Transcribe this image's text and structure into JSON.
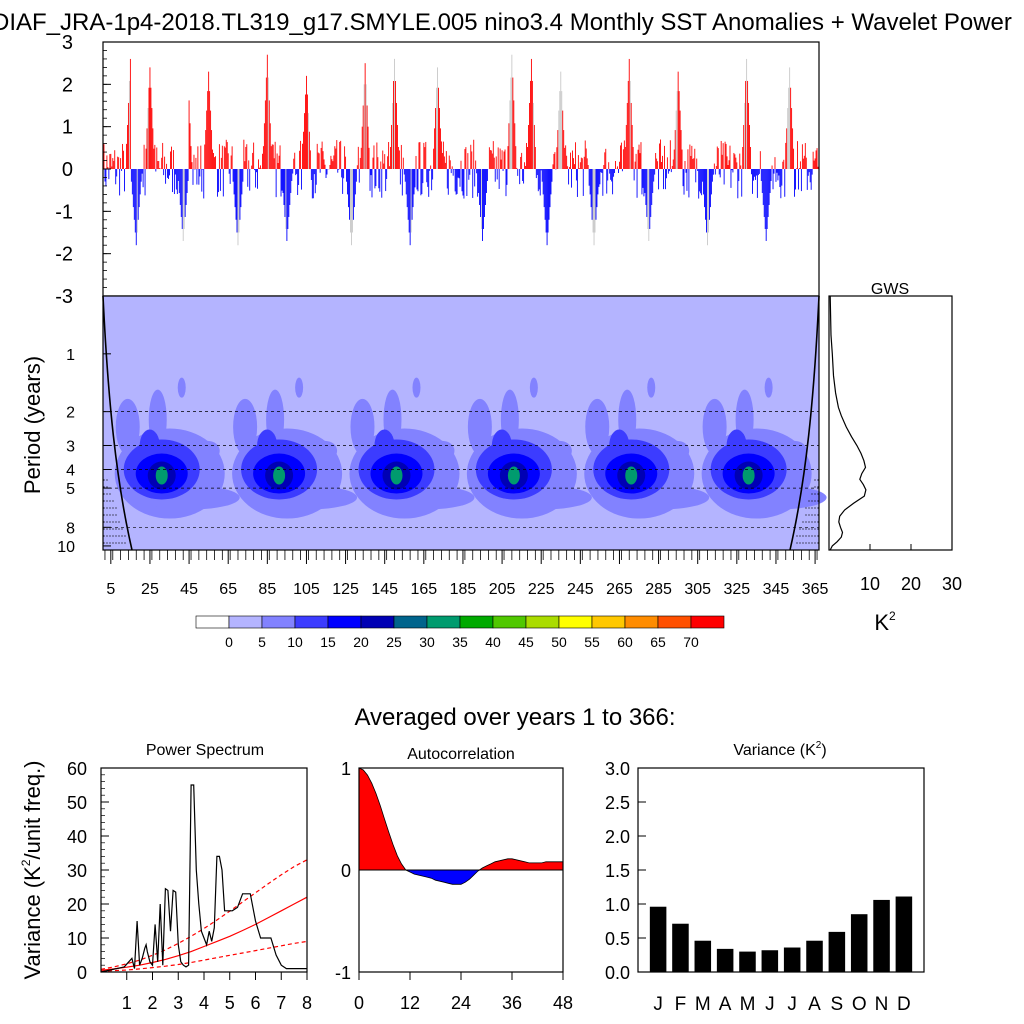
{
  "title": "DIAF_JRA-1p4-2018.TL319_g17.SMYLE.005 nino3.4 Monthly SST Anomalies + Wavelet Power",
  "subtitle": "Averaged over years 1 to 366:",
  "colors": {
    "pos": "#ff0000",
    "neg": "#0000ff",
    "clipped": "#c8c8c8",
    "fit": "#ff0000",
    "bar": "#000000"
  },
  "chart_data": [
    {
      "id": "anomaly_ts",
      "type": "bar",
      "ylim": [
        -3,
        3
      ],
      "yticks": [
        "3",
        "2",
        "1",
        "0",
        "-1",
        "-2",
        "-3"
      ],
      "yticks_values": [
        3,
        2,
        1,
        0,
        -1,
        -2,
        -3
      ],
      "xlim": [
        1,
        367
      ],
      "peak_years": [
        15,
        25,
        44,
        55,
        85,
        95,
        105,
        135,
        150,
        172,
        210,
        220,
        235,
        270,
        280,
        295,
        330,
        340,
        352
      ],
      "peak_values": [
        2.6,
        2.4,
        2.7,
        2.3,
        2.7,
        2.5,
        2.2,
        2.5,
        2.6,
        2.4,
        2.7,
        2.6,
        2.3,
        2.6,
        2.7,
        2.3,
        2.6,
        2.7,
        2.4
      ],
      "trough_years": [
        18,
        42,
        70,
        95,
        128,
        158,
        195,
        228,
        252,
        280,
        310,
        340
      ],
      "trough_values": [
        -1.8,
        -1.7,
        -1.8,
        -1.7,
        -1.8,
        -1.8,
        -1.7,
        -1.8,
        -1.8,
        -1.7,
        -1.8,
        -1.7
      ]
    },
    {
      "id": "wavelet",
      "type": "heatmap",
      "ylabel": "Period (years)",
      "yticks": [
        "1",
        "2",
        "3",
        "4",
        "5",
        "8",
        "10"
      ],
      "yticks_values": [
        1,
        2,
        3,
        4,
        5,
        8,
        10
      ],
      "ylim": [
        0.5,
        10.5
      ],
      "xticks": [
        "5",
        "25",
        "45",
        "65",
        "85",
        "105",
        "125",
        "145",
        "165",
        "185",
        "205",
        "225",
        "245",
        "265",
        "285",
        "305",
        "325",
        "345",
        "365"
      ],
      "xticks_values": [
        5,
        25,
        45,
        65,
        85,
        105,
        125,
        145,
        165,
        185,
        205,
        225,
        245,
        265,
        285,
        305,
        325,
        345,
        365
      ],
      "xlim": [
        1,
        367
      ],
      "dashed_periods": [
        2,
        3,
        4,
        5,
        8
      ],
      "blob_centers": [
        30,
        90,
        150,
        210,
        270,
        330
      ],
      "levels": [
        "0",
        "5",
        "10",
        "15",
        "20",
        "25",
        "30",
        "35",
        "40",
        "45",
        "50",
        "55",
        "60",
        "65",
        "70"
      ],
      "level_colors": [
        "#ffffff",
        "#b4b4ff",
        "#8282ff",
        "#3c3cff",
        "#0000ff",
        "#0000b4",
        "#00648c",
        "#009b6e",
        "#00aa00",
        "#50c800",
        "#aadc00",
        "#ffff00",
        "#ffc800",
        "#ff8c00",
        "#ff5000",
        "#ff0000"
      ]
    },
    {
      "id": "gws",
      "type": "line",
      "title": "GWS",
      "xlabel": "K",
      "xlabel_sup": "2",
      "xticks": [
        "10",
        "20",
        "30"
      ],
      "xticks_values": [
        10,
        20,
        30
      ],
      "xlim": [
        0,
        30
      ],
      "ylim": [
        0.5,
        10.5
      ],
      "periods": [
        0.5,
        0.8,
        1.0,
        1.3,
        1.6,
        1.9,
        2.1,
        2.4,
        2.7,
        3.0,
        3.3,
        3.6,
        3.9,
        4.2,
        4.5,
        4.8,
        5.1,
        5.5,
        6.0,
        6.5,
        7.0,
        7.5,
        8.0,
        8.5,
        9.0,
        9.5,
        10.0,
        10.5
      ],
      "values": [
        0.3,
        0.5,
        0.8,
        1.1,
        1.6,
        2.3,
        3.0,
        4.2,
        5.5,
        6.8,
        7.8,
        8.5,
        8.9,
        8.0,
        7.5,
        8.4,
        9.0,
        8.6,
        6.0,
        3.8,
        2.6,
        2.4,
        2.8,
        3.3,
        3.0,
        2.0,
        0.8,
        0.3
      ]
    },
    {
      "id": "power_spectrum",
      "type": "line",
      "title": "Power Spectrum",
      "ylabel": "Variance (K",
      "ylabel_sup": "2",
      "ylabel_tail": "/unit freq.)",
      "xticks": [
        "1",
        "2",
        "3",
        "4",
        "5",
        "6",
        "7",
        "8"
      ],
      "xticks_values": [
        1,
        2,
        3,
        4,
        5,
        6,
        7,
        8
      ],
      "xlim": [
        0,
        8
      ],
      "yticks": [
        "0",
        "10",
        "20",
        "30",
        "40",
        "50",
        "60"
      ],
      "yticks_values": [
        0,
        10,
        20,
        30,
        40,
        50,
        60
      ],
      "ylim": [
        0,
        60
      ],
      "x": [
        0,
        0.9,
        1.2,
        1.3,
        1.4,
        1.5,
        1.6,
        1.7,
        1.75,
        1.8,
        1.9,
        2.0,
        2.1,
        2.2,
        2.3,
        2.4,
        2.5,
        2.6,
        2.7,
        2.8,
        2.9,
        3.0,
        3.1,
        3.2,
        3.3,
        3.4,
        3.5,
        3.6,
        3.7,
        3.8,
        3.9,
        4.0,
        4.1,
        4.2,
        4.3,
        4.4,
        4.5,
        4.6,
        4.7,
        4.8,
        4.9,
        5.0,
        5.1,
        5.3,
        5.5,
        5.6,
        5.8,
        6.0,
        6.2,
        6.4,
        6.6,
        6.8,
        7.0,
        7.2,
        8.0
      ],
      "values": [
        0,
        1.5,
        4,
        1,
        15,
        2,
        4,
        7,
        8,
        6,
        3,
        2,
        14,
        3,
        20,
        2,
        24.5,
        24,
        12,
        24,
        23.5,
        8,
        3,
        2,
        1.5,
        2,
        55,
        55,
        30,
        20,
        12,
        10,
        8,
        12,
        9,
        13,
        34,
        34,
        30,
        18,
        18,
        18,
        18,
        19,
        23,
        23,
        23,
        15,
        10,
        10,
        10,
        5,
        2,
        1,
        1
      ],
      "fit": [
        0.5,
        0.9,
        1.4,
        2.0,
        2.8,
        3.7,
        4.8,
        6.0,
        7.5,
        9.0,
        10.5,
        12.2,
        14.0,
        16.0,
        18.0,
        20.0,
        22.0
      ],
      "fit_lower": [
        0.2,
        0.4,
        0.6,
        0.9,
        1.3,
        1.7,
        2.2,
        2.8,
        3.5,
        4.2,
        4.9,
        5.6,
        6.3,
        7.0,
        7.7,
        8.4,
        9.0
      ],
      "fit_upper": [
        0.8,
        1.5,
        2.4,
        3.5,
        4.9,
        6.5,
        8.4,
        10.5,
        12.8,
        15.3,
        17.9,
        20.6,
        23.3,
        26.0,
        28.6,
        31.0,
        33.0
      ],
      "fit_x": [
        0,
        0.5,
        1.0,
        1.5,
        2.0,
        2.5,
        3.0,
        3.5,
        4.0,
        4.5,
        5.0,
        5.5,
        6.0,
        6.5,
        7.0,
        7.5,
        8.0
      ]
    },
    {
      "id": "autocorrelation",
      "type": "area",
      "title": "Autocorrelation",
      "xticks": [
        "0",
        "12",
        "24",
        "36",
        "48"
      ],
      "xticks_values": [
        0,
        12,
        24,
        36,
        48
      ],
      "xlim": [
        0,
        48
      ],
      "yticks": [
        "1",
        "0",
        "-1"
      ],
      "yticks_values": [
        1,
        0,
        -1
      ],
      "ylim": [
        -1,
        1
      ],
      "lags": [
        0,
        1,
        2,
        3,
        4,
        5,
        6,
        7,
        8,
        9,
        10,
        11,
        12,
        13,
        14,
        15,
        16,
        17,
        18,
        19,
        20,
        21,
        22,
        23,
        24,
        25,
        26,
        27,
        28,
        29,
        30,
        31,
        32,
        33,
        34,
        35,
        36,
        37,
        38,
        39,
        40,
        41,
        42,
        43,
        44,
        45,
        46,
        47,
        48
      ],
      "values": [
        1.0,
        0.98,
        0.93,
        0.85,
        0.75,
        0.63,
        0.5,
        0.37,
        0.25,
        0.14,
        0.06,
        0.0,
        -0.02,
        -0.04,
        -0.05,
        -0.06,
        -0.07,
        -0.08,
        -0.1,
        -0.11,
        -0.12,
        -0.13,
        -0.14,
        -0.14,
        -0.14,
        -0.12,
        -0.09,
        -0.05,
        -0.01,
        0.02,
        0.04,
        0.06,
        0.08,
        0.09,
        0.1,
        0.11,
        0.11,
        0.1,
        0.09,
        0.08,
        0.07,
        0.07,
        0.07,
        0.07,
        0.08,
        0.08,
        0.08,
        0.08,
        0.08
      ]
    },
    {
      "id": "monthly_variance",
      "type": "bar",
      "title": "Variance (K",
      "title_sup": "2",
      "title_tail": ")",
      "categories": [
        "J",
        "F",
        "M",
        "A",
        "M",
        "J",
        "J",
        "A",
        "S",
        "O",
        "N",
        "D"
      ],
      "values": [
        0.96,
        0.71,
        0.46,
        0.34,
        0.3,
        0.32,
        0.36,
        0.46,
        0.59,
        0.85,
        1.06,
        1.11
      ],
      "yticks": [
        "3.0",
        "2.5",
        "2.0",
        "1.5",
        "1.0",
        "0.5",
        "0.0"
      ],
      "yticks_values": [
        3.0,
        2.5,
        2.0,
        1.5,
        1.0,
        0.5,
        0.0
      ],
      "ylim": [
        0,
        3
      ]
    }
  ]
}
